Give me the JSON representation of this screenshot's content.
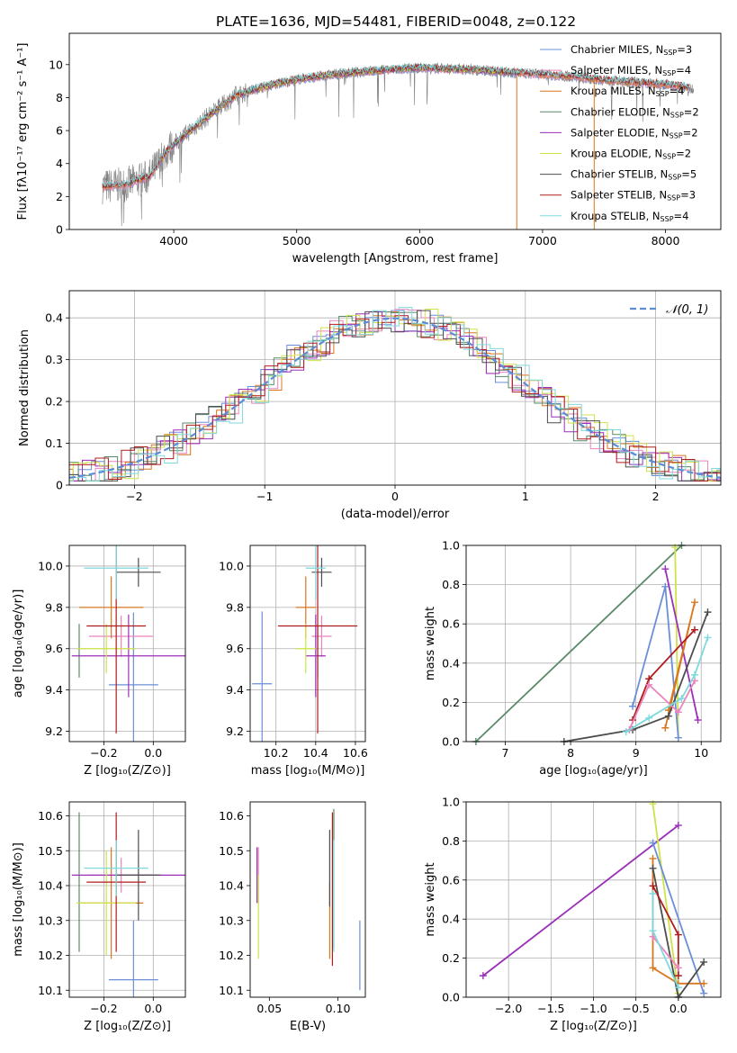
{
  "figure_title": "PLATE=1636, MJD=54481, FIBERID=0048, z=0.122",
  "colors": {
    "Chabrier MILES": "#6a8fd8",
    "Salpeter MILES": "#ea84bd",
    "Kroupa MILES": "#d9771f",
    "Chabrier ELODIE": "#5a8a6a",
    "Salpeter ELODIE": "#9b2fb8",
    "Kroupa ELODIE": "#cfe24a",
    "Chabrier STELIB": "#4d4d4d",
    "Salpeter STELIB": "#b01c1c",
    "Kroupa STELIB": "#7ed9dc",
    "normal_curve": "#5b8dd6",
    "spectrum_gray": "#7f7f7f"
  },
  "chart_data": [
    {
      "id": "spectrum",
      "type": "line",
      "title": "PLATE=1636, MJD=54481, FIBERID=0048, z=0.122",
      "xlabel": "wavelength [Angstrom, rest frame]",
      "ylabel": "Flux [fλ10⁻¹⁷ erg cm⁻² s⁻¹ A⁻¹]",
      "xlim": [
        3150,
        8450
      ],
      "ylim": [
        0,
        11.9
      ],
      "xticks": [
        4000,
        5000,
        6000,
        7000,
        8000
      ],
      "yticks": [
        0,
        2,
        4,
        6,
        8,
        10
      ],
      "grid": false,
      "legend_position": "top-right",
      "legend": [
        {
          "label": "Chabrier MILES, N",
          "sub": "SSP",
          "suffix": "=3",
          "key": "Chabrier MILES"
        },
        {
          "label": "Salpeter MILES, N",
          "sub": "SSP",
          "suffix": "=4",
          "key": "Salpeter MILES"
        },
        {
          "label": "Kroupa MILES, N",
          "sub": "SSP",
          "suffix": "=4",
          "key": "Kroupa MILES"
        },
        {
          "label": "Chabrier ELODIE, N",
          "sub": "SSP",
          "suffix": "=2",
          "key": "Chabrier ELODIE"
        },
        {
          "label": "Salpeter ELODIE, N",
          "sub": "SSP",
          "suffix": "=2",
          "key": "Salpeter ELODIE"
        },
        {
          "label": "Kroupa ELODIE, N",
          "sub": "SSP",
          "suffix": "=2",
          "key": "Kroupa ELODIE"
        },
        {
          "label": "Chabrier STELIB, N",
          "sub": "SSP",
          "suffix": "=5",
          "key": "Chabrier STELIB"
        },
        {
          "label": "Salpeter STELIB, N",
          "sub": "SSP",
          "suffix": "=3",
          "key": "Salpeter STELIB"
        },
        {
          "label": "Kroupa STELIB, N",
          "sub": "SSP",
          "suffix": "=4",
          "key": "Kroupa STELIB"
        }
      ],
      "continuum": {
        "x": [
          3400,
          3600,
          3800,
          3950,
          4100,
          4300,
          4500,
          4700,
          5000,
          5300,
          5600,
          6000,
          6400,
          6800,
          7200,
          7600,
          8000,
          8200
        ],
        "y": [
          2.6,
          2.7,
          3.2,
          4.8,
          5.8,
          7.0,
          8.1,
          8.6,
          9.1,
          9.4,
          9.6,
          9.8,
          9.7,
          9.5,
          9.3,
          9.0,
          8.8,
          8.6
        ]
      }
    },
    {
      "id": "residuals",
      "type": "line",
      "xlabel": "(data-model)/error",
      "ylabel": "Normed distribution",
      "xlim": [
        -2.5,
        2.5
      ],
      "ylim": [
        0,
        0.465
      ],
      "xticks": [
        -2,
        -1,
        0,
        1,
        2
      ],
      "yticks": [
        0.0,
        0.1,
        0.2,
        0.3,
        0.4
      ],
      "grid": true,
      "legend_position": "top-right",
      "legend": [
        {
          "label": "𝒩(0, 1)",
          "key": "normal_curve"
        }
      ],
      "bin_width": 0.1
    },
    {
      "id": "age-vs-z",
      "type": "scatter",
      "xlabel": "Z [log₁₀(Z/Z⊙)]",
      "ylabel": "age  [log₁₀(age/yr)]",
      "xlim": [
        -0.34,
        0.13
      ],
      "ylim": [
        9.15,
        10.1
      ],
      "xticks": [
        -0.2,
        0.0
      ],
      "yticks": [
        9.2,
        9.4,
        9.6,
        9.8,
        10.0
      ],
      "grid": true,
      "points": [
        {
          "key": "Chabrier MILES",
          "x": -0.08,
          "y": 9.425,
          "xerr": 0.1,
          "yerr": 0.35
        },
        {
          "key": "Salpeter MILES",
          "x": -0.13,
          "y": 9.66,
          "xerr": 0.13,
          "yerr": 0.1
        },
        {
          "key": "Kroupa MILES",
          "x": -0.17,
          "y": 9.8,
          "xerr": 0.13,
          "yerr": 0.15
        },
        {
          "key": "Chabrier ELODIE",
          "x": -0.3,
          "y": 9.59,
          "xerr": 0.0,
          "yerr": 0.13
        },
        {
          "key": "Salpeter ELODIE",
          "x": -0.1,
          "y": 9.565,
          "xerr": 0.23,
          "yerr": 0.2
        },
        {
          "key": "Kroupa ELODIE",
          "x": -0.19,
          "y": 9.6,
          "xerr": 0.12,
          "yerr": 0.12
        },
        {
          "key": "Chabrier STELIB",
          "x": -0.06,
          "y": 9.97,
          "xerr": 0.09,
          "yerr": 0.07
        },
        {
          "key": "Salpeter STELIB",
          "x": -0.15,
          "y": 9.71,
          "xerr": 0.12,
          "yerr": 0.52
        },
        {
          "key": "Kroupa STELIB",
          "x": -0.15,
          "y": 9.99,
          "xerr": 0.13,
          "yerr": 0.15
        }
      ]
    },
    {
      "id": "age-vs-mass",
      "type": "scatter",
      "xlabel": "mass [log₁₀(M/M⊙)]",
      "ylabel": "",
      "xlim": [
        10.07,
        10.65
      ],
      "ylim": [
        9.15,
        10.1
      ],
      "xticks": [
        10.2,
        10.4,
        10.6
      ],
      "yticks": [
        9.2,
        9.4,
        9.6,
        9.8,
        10.0
      ],
      "grid": true,
      "points": [
        {
          "key": "Chabrier MILES",
          "x": 10.13,
          "y": 9.43,
          "xerr": 0.05,
          "yerr": 0.35
        },
        {
          "key": "Salpeter MILES",
          "x": 10.43,
          "y": 9.66,
          "xerr": 0.05,
          "yerr": 0.1
        },
        {
          "key": "Kroupa MILES",
          "x": 10.35,
          "y": 9.8,
          "xerr": 0.05,
          "yerr": 0.15
        },
        {
          "key": "Chabrier ELODIE",
          "x": 10.41,
          "y": 9.59,
          "xerr": 0.0,
          "yerr": 0.13
        },
        {
          "key": "Salpeter ELODIE",
          "x": 10.4,
          "y": 9.565,
          "xerr": 0.05,
          "yerr": 0.2
        },
        {
          "key": "Kroupa ELODIE",
          "x": 10.35,
          "y": 9.6,
          "xerr": 0.05,
          "yerr": 0.12
        },
        {
          "key": "Chabrier STELIB",
          "x": 10.43,
          "y": 9.97,
          "xerr": 0.05,
          "yerr": 0.07
        },
        {
          "key": "Salpeter STELIB",
          "x": 10.41,
          "y": 9.71,
          "xerr": 0.2,
          "yerr": 0.52
        },
        {
          "key": "Kroupa STELIB",
          "x": 10.4,
          "y": 9.99,
          "xerr": 0.05,
          "yerr": 0.15
        }
      ]
    },
    {
      "id": "weight-vs-age",
      "type": "line",
      "xlabel": "age  [log₁₀(age/yr)]",
      "ylabel": "mass weight",
      "xlim": [
        6.4,
        10.3
      ],
      "ylim": [
        0,
        1.0
      ],
      "xticks": [
        7,
        8,
        9,
        10
      ],
      "yticks": [
        0.0,
        0.2,
        0.4,
        0.6,
        0.8,
        1.0
      ],
      "grid": true,
      "series": [
        {
          "key": "Chabrier ELODIE",
          "x": [
            6.55,
            9.7
          ],
          "y": [
            0.0,
            1.0
          ]
        },
        {
          "key": "Kroupa ELODIE",
          "x": [
            9.6,
            9.65
          ],
          "y": [
            0.99,
            0.02
          ]
        },
        {
          "key": "Chabrier MILES",
          "x": [
            8.95,
            9.45,
            9.65
          ],
          "y": [
            0.18,
            0.79,
            0.02
          ]
        },
        {
          "key": "Salpeter ELODIE",
          "x": [
            9.45,
            9.95
          ],
          "y": [
            0.88,
            0.11
          ]
        },
        {
          "key": "Kroupa MILES",
          "x": [
            9.45,
            9.9,
            9.5
          ],
          "y": [
            0.07,
            0.71,
            0.16
          ]
        },
        {
          "key": "Chabrier STELIB",
          "x": [
            7.9,
            8.95,
            9.5,
            10.1
          ],
          "y": [
            0.0,
            0.06,
            0.13,
            0.66
          ]
        },
        {
          "key": "Salpeter STELIB",
          "x": [
            8.95,
            9.2,
            9.9
          ],
          "y": [
            0.11,
            0.32,
            0.57
          ]
        },
        {
          "key": "Salpeter MILES",
          "x": [
            8.9,
            9.2,
            9.65,
            9.9
          ],
          "y": [
            0.06,
            0.29,
            0.15,
            0.31
          ]
        },
        {
          "key": "Kroupa STELIB",
          "x": [
            8.85,
            9.2,
            9.7,
            9.9,
            10.1
          ],
          "y": [
            0.05,
            0.12,
            0.22,
            0.34,
            0.53
          ]
        }
      ]
    },
    {
      "id": "mass-vs-z",
      "type": "scatter",
      "xlabel": "Z [log₁₀(Z/Z⊙)]",
      "ylabel": "mass [log₁₀(M/M⊙)]",
      "xlim": [
        -0.34,
        0.13
      ],
      "ylim": [
        10.08,
        10.64
      ],
      "xticks": [
        -0.2,
        0.0
      ],
      "yticks": [
        10.1,
        10.2,
        10.3,
        10.4,
        10.5,
        10.6
      ],
      "grid": true,
      "points": [
        {
          "key": "Chabrier MILES",
          "x": -0.08,
          "y": 10.13,
          "xerr": 0.1,
          "yerr": 0.17
        },
        {
          "key": "Salpeter MILES",
          "x": -0.13,
          "y": 10.43,
          "xerr": 0.13,
          "yerr": 0.05
        },
        {
          "key": "Kroupa MILES",
          "x": -0.17,
          "y": 10.35,
          "xerr": 0.13,
          "yerr": 0.16
        },
        {
          "key": "Chabrier ELODIE",
          "x": -0.3,
          "y": 10.41,
          "xerr": 0.0,
          "yerr": 0.2
        },
        {
          "key": "Salpeter ELODIE",
          "x": -0.1,
          "y": 10.43,
          "xerr": 0.23,
          "yerr": 0.0
        },
        {
          "key": "Kroupa ELODIE",
          "x": -0.19,
          "y": 10.35,
          "xerr": 0.12,
          "yerr": 0.15
        },
        {
          "key": "Chabrier STELIB",
          "x": -0.06,
          "y": 10.43,
          "xerr": 0.09,
          "yerr": 0.13
        },
        {
          "key": "Salpeter STELIB",
          "x": -0.15,
          "y": 10.41,
          "xerr": 0.12,
          "yerr": 0.2
        },
        {
          "key": "Kroupa STELIB",
          "x": -0.15,
          "y": 10.45,
          "xerr": 0.13,
          "yerr": 0.08
        }
      ]
    },
    {
      "id": "mass-vs-ebv",
      "type": "scatter",
      "xlabel": "E(B-V)",
      "ylabel": "",
      "xlim": [
        0.036,
        0.12
      ],
      "ylim": [
        10.08,
        10.64
      ],
      "xticks": [
        0.05,
        0.1
      ],
      "yticks": [
        10.1,
        10.2,
        10.3,
        10.4,
        10.5,
        10.6
      ],
      "grid": false,
      "points": [
        {
          "key": "Chabrier MILES",
          "x": 0.116,
          "y": 10.2,
          "xerr": 0,
          "yerr": 0.1
        },
        {
          "key": "Salpeter MILES",
          "x": 0.042,
          "y": 10.43,
          "xerr": 0,
          "yerr": 0.08
        },
        {
          "key": "Kroupa MILES",
          "x": 0.094,
          "y": 10.3,
          "xerr": 0,
          "yerr": 0.11
        },
        {
          "key": "Chabrier ELODIE",
          "x": 0.097,
          "y": 10.42,
          "xerr": 0,
          "yerr": 0.2
        },
        {
          "key": "Salpeter ELODIE",
          "x": 0.041,
          "y": 10.43,
          "xerr": 0,
          "yerr": 0.08
        },
        {
          "key": "Kroupa ELODIE",
          "x": 0.042,
          "y": 10.31,
          "xerr": 0,
          "yerr": 0.12
        },
        {
          "key": "Chabrier STELIB",
          "x": 0.094,
          "y": 10.45,
          "xerr": 0,
          "yerr": 0.11
        },
        {
          "key": "Salpeter STELIB",
          "x": 0.096,
          "y": 10.39,
          "xerr": 0,
          "yerr": 0.22
        },
        {
          "key": "Kroupa STELIB",
          "x": 0.097,
          "y": 10.37,
          "xerr": 0,
          "yerr": 0.16
        }
      ]
    },
    {
      "id": "weight-vs-z",
      "type": "line",
      "xlabel": "Z [log₁₀(Z/Z⊙)]",
      "ylabel": "mass weight",
      "xlim": [
        -2.5,
        0.5
      ],
      "ylim": [
        0,
        1.0
      ],
      "xticks": [
        -2.0,
        -1.5,
        -1.0,
        -0.5,
        0.0
      ],
      "yticks": [
        0.0,
        0.2,
        0.4,
        0.6,
        0.8,
        1.0
      ],
      "grid": true,
      "series": [
        {
          "key": "Salpeter ELODIE",
          "x": [
            -2.3,
            0.0
          ],
          "y": [
            0.11,
            0.88
          ]
        },
        {
          "key": "Kroupa ELODIE",
          "x": [
            -0.3,
            0.0
          ],
          "y": [
            0.99,
            0.02
          ]
        },
        {
          "key": "Chabrier MILES",
          "x": [
            -0.3,
            0.3
          ],
          "y": [
            0.79,
            0.02
          ]
        },
        {
          "key": "Kroupa MILES",
          "x": [
            -0.3,
            -0.3,
            0.0,
            0.3
          ],
          "y": [
            0.71,
            0.15,
            0.07,
            0.07
          ]
        },
        {
          "key": "Chabrier STELIB",
          "x": [
            -0.3,
            0.0,
            0.3
          ],
          "y": [
            0.66,
            0.0,
            0.18
          ]
        },
        {
          "key": "Salpeter STELIB",
          "x": [
            -0.3,
            0.0,
            0.0
          ],
          "y": [
            0.57,
            0.32,
            0.11
          ]
        },
        {
          "key": "Salpeter MILES",
          "x": [
            -0.3,
            0.0
          ],
          "y": [
            0.31,
            0.15
          ]
        },
        {
          "key": "Kroupa STELIB",
          "x": [
            -0.3,
            -0.3,
            0.0
          ],
          "y": [
            0.53,
            0.34,
            0.05
          ]
        }
      ]
    }
  ]
}
